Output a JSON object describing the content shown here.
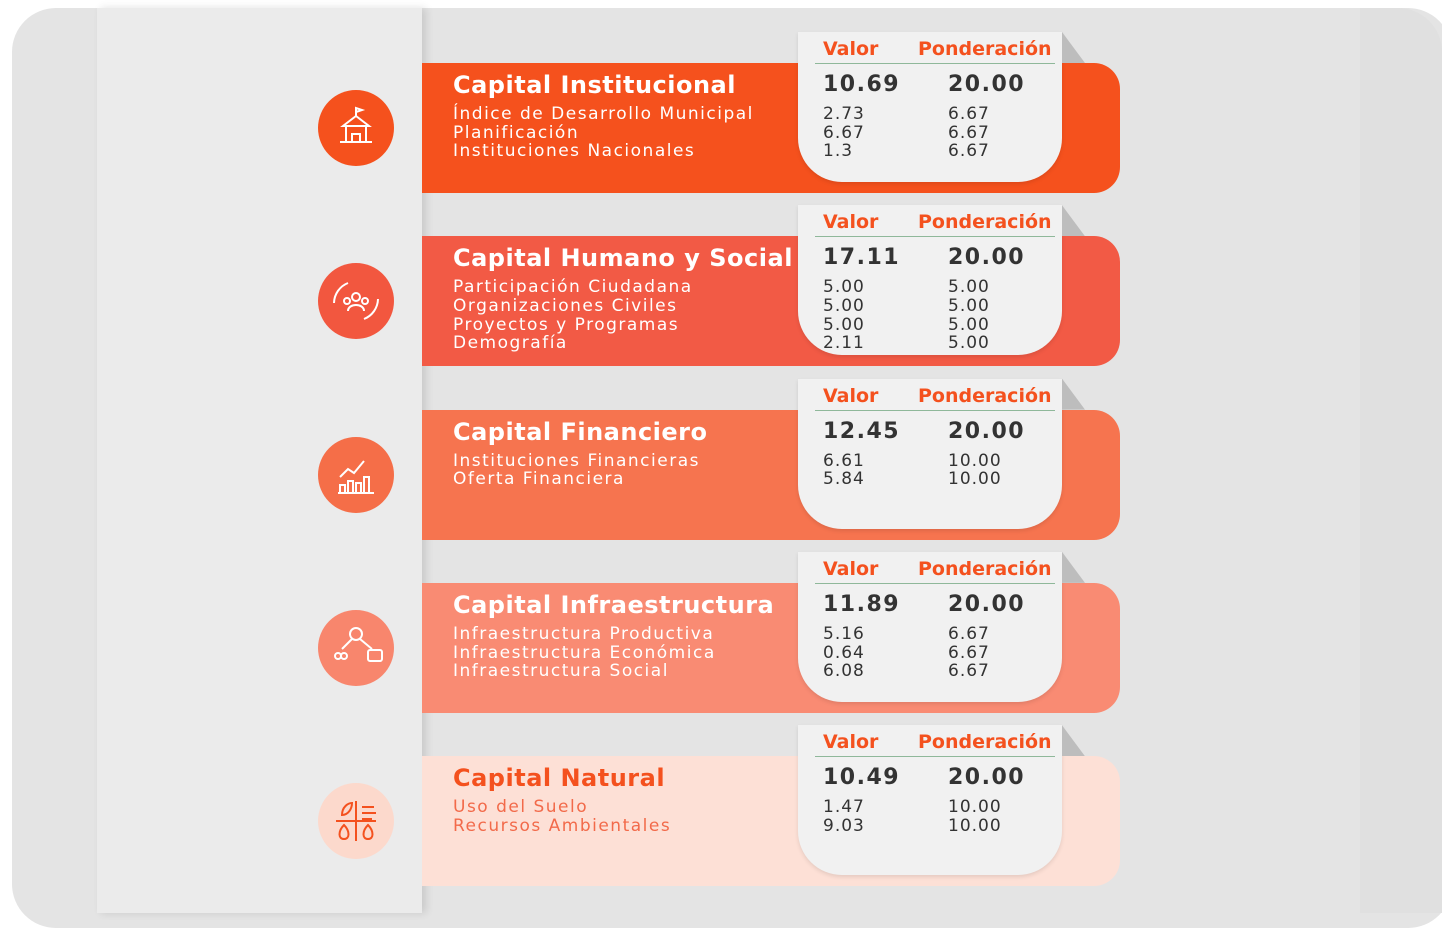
{
  "sections": [
    {
      "title": "Capital Institucional",
      "headers": [
        "Valor",
        "Ponderación"
      ],
      "total_value": "10.69",
      "total_weight": "20.00",
      "items": [
        {
          "label": "Índice de Desarrollo Municipal",
          "value": "2.73",
          "weight": "6.67"
        },
        {
          "label": "Planificación",
          "value": "6.67",
          "weight": "6.67"
        },
        {
          "label": "Instituciones Nacionales",
          "value": "1.3",
          "weight": "6.67"
        }
      ]
    },
    {
      "title": "Capital Humano y Social",
      "headers": [
        "Valor",
        "Ponderación"
      ],
      "total_value": "17.11",
      "total_weight": "20.00",
      "items": [
        {
          "label": "Participación Ciudadana",
          "value": "5.00",
          "weight": "5.00"
        },
        {
          "label": "Organizaciones Civiles",
          "value": "5.00",
          "weight": "5.00"
        },
        {
          "label": "Proyectos y Programas",
          "value": "5.00",
          "weight": "5.00"
        },
        {
          "label": "Demografía",
          "value": "2.11",
          "weight": "5.00"
        }
      ]
    },
    {
      "title": "Capital Financiero",
      "headers": [
        "Valor",
        "Ponderación"
      ],
      "total_value": "12.45",
      "total_weight": "20.00",
      "items": [
        {
          "label": "Instituciones Financieras",
          "value": "6.61",
          "weight": "10.00"
        },
        {
          "label": "Oferta Financiera",
          "value": "5.84",
          "weight": "10.00"
        }
      ]
    },
    {
      "title": "Capital Infraestructura",
      "headers": [
        "Valor",
        "Ponderación"
      ],
      "total_value": "11.89",
      "total_weight": "20.00",
      "items": [
        {
          "label": "Infraestructura Productiva",
          "value": "5.16",
          "weight": "6.67"
        },
        {
          "label": "Infraestructura Económica",
          "value": "0.64",
          "weight": "6.67"
        },
        {
          "label": "Infraestructura Social",
          "value": "6.08",
          "weight": "6.67"
        }
      ]
    },
    {
      "title": "Capital Natural",
      "headers": [
        "Valor",
        "Ponderación"
      ],
      "total_value": "10.49",
      "total_weight": "20.00",
      "items": [
        {
          "label": "Uso del Suelo",
          "value": "1.47",
          "weight": "10.00"
        },
        {
          "label": "Recursos Ambientales",
          "value": "9.03",
          "weight": "10.00"
        }
      ]
    }
  ]
}
